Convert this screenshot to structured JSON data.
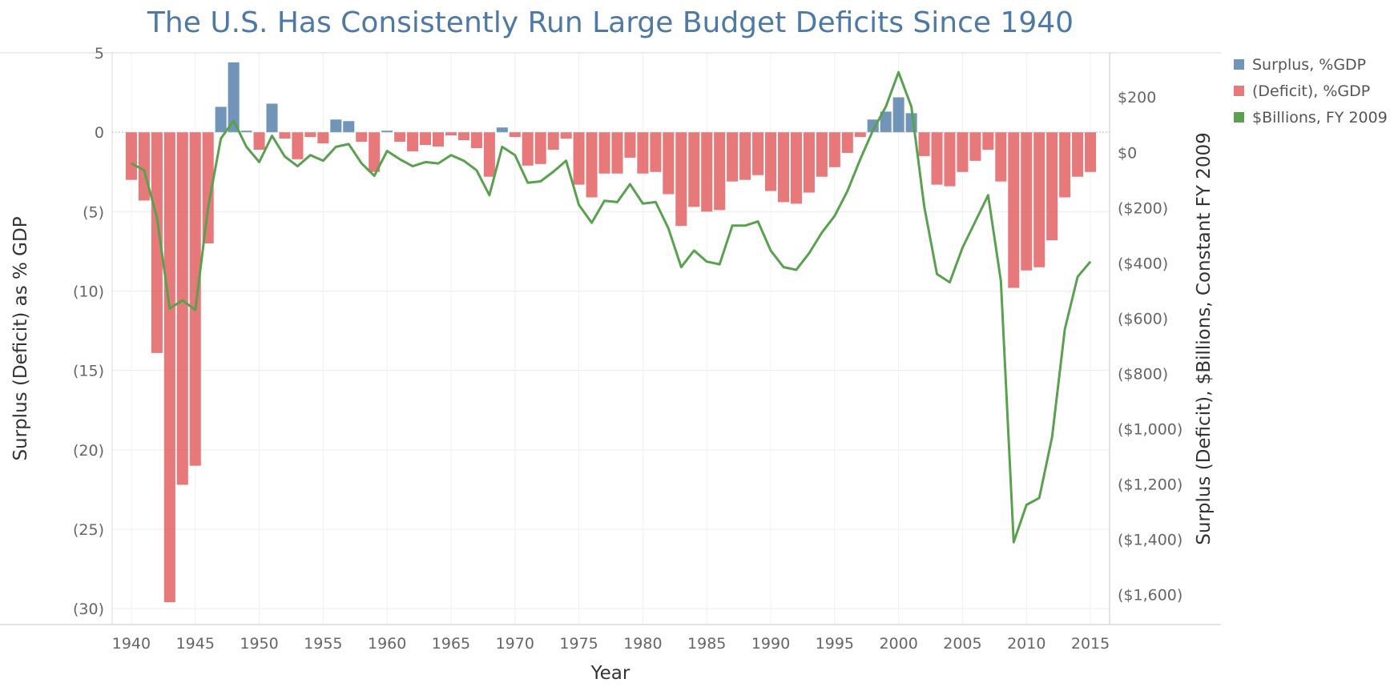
{
  "chart_data": {
    "type": "bar",
    "title": "The U.S. Has Consistently Run Large Budget Deficits Since 1940",
    "xlabel": "Year",
    "ylabel": "Surplus (Deficit) as % GDP",
    "y2label": "Surplus (Deficit), $Billions, Constant FY 2009",
    "xlim": [
      1938.5,
      2016.5
    ],
    "ylim": [
      -31,
      5
    ],
    "y2lim": [
      -1708,
      360
    ],
    "xticks": [
      "1940",
      "1945",
      "1950",
      "1955",
      "1960",
      "1965",
      "1970",
      "1975",
      "1980",
      "1985",
      "1990",
      "1995",
      "2000",
      "2005",
      "2010",
      "2015"
    ],
    "yticks": [
      {
        "value": 5,
        "label": "5"
      },
      {
        "value": 0,
        "label": "0"
      },
      {
        "value": -5,
        "label": "(5)"
      },
      {
        "value": -10,
        "label": "(10)"
      },
      {
        "value": -15,
        "label": "(15)"
      },
      {
        "value": -20,
        "label": "(20)"
      },
      {
        "value": -25,
        "label": "(25)"
      },
      {
        "value": -30,
        "label": "(30)"
      }
    ],
    "y2ticks": [
      {
        "value": 200,
        "label": "$200"
      },
      {
        "value": 0,
        "label": "$0"
      },
      {
        "value": -200,
        "label": "($200)"
      },
      {
        "value": -400,
        "label": "($400)"
      },
      {
        "value": -600,
        "label": "($600)"
      },
      {
        "value": -800,
        "label": "($800)"
      },
      {
        "value": -1000,
        "label": "($1,000)"
      },
      {
        "value": -1200,
        "label": "($1,200)"
      },
      {
        "value": -1400,
        "label": "($1,400)"
      },
      {
        "value": -1600,
        "label": "($1,600)"
      }
    ],
    "grid": true,
    "legend_position": "right",
    "colors": {
      "surplus": "#4e79a7",
      "deficit": "#e15759",
      "line": "#59a14f"
    },
    "series": [
      {
        "name": "Surplus, %GDP",
        "axis": "left",
        "type": "bar",
        "x": [
          1947,
          1948,
          1949,
          1951,
          1956,
          1957,
          1960,
          1969,
          1998,
          1999,
          2000,
          2001
        ],
        "values": [
          1.6,
          4.4,
          0.1,
          1.8,
          0.8,
          0.7,
          0.1,
          0.3,
          0.8,
          1.3,
          2.2,
          1.2
        ]
      },
      {
        "name": "(Deficit), %GDP",
        "axis": "left",
        "type": "bar",
        "x": [
          1940,
          1941,
          1942,
          1943,
          1944,
          1945,
          1946,
          1950,
          1952,
          1953,
          1954,
          1955,
          1958,
          1959,
          1961,
          1962,
          1963,
          1964,
          1965,
          1966,
          1967,
          1968,
          1970,
          1971,
          1972,
          1973,
          1974,
          1975,
          1976,
          1977,
          1978,
          1979,
          1980,
          1981,
          1982,
          1983,
          1984,
          1985,
          1986,
          1987,
          1988,
          1989,
          1990,
          1991,
          1992,
          1993,
          1994,
          1995,
          1996,
          1997,
          2002,
          2003,
          2004,
          2005,
          2006,
          2007,
          2008,
          2009,
          2010,
          2011,
          2012,
          2013,
          2014,
          2015
        ],
        "values": [
          -3.0,
          -4.3,
          -13.9,
          -29.6,
          -22.2,
          -21.0,
          -7.0,
          -1.1,
          -0.4,
          -1.7,
          -0.3,
          -0.7,
          -0.6,
          -2.5,
          -0.6,
          -1.2,
          -0.8,
          -0.9,
          -0.2,
          -0.5,
          -1.0,
          -2.8,
          -0.3,
          -2.1,
          -2.0,
          -1.1,
          -0.4,
          -3.3,
          -4.1,
          -2.6,
          -2.6,
          -1.6,
          -2.6,
          -2.5,
          -3.9,
          -5.9,
          -4.7,
          -5.0,
          -4.9,
          -3.1,
          -3.0,
          -2.7,
          -3.7,
          -4.4,
          -4.5,
          -3.8,
          -2.8,
          -2.2,
          -1.3,
          -0.3,
          -1.5,
          -3.3,
          -3.4,
          -2.5,
          -1.8,
          -1.1,
          -3.1,
          -9.8,
          -8.7,
          -8.5,
          -6.8,
          -4.1,
          -2.8,
          -2.5
        ]
      },
      {
        "name": "$Billions, FY 2009",
        "axis": "right",
        "type": "line",
        "x": [
          1940,
          1941,
          1942,
          1943,
          1944,
          1945,
          1946,
          1947,
          1948,
          1949,
          1950,
          1951,
          1952,
          1953,
          1954,
          1955,
          1956,
          1957,
          1958,
          1959,
          1960,
          1961,
          1962,
          1963,
          1964,
          1965,
          1966,
          1967,
          1968,
          1969,
          1970,
          1971,
          1972,
          1973,
          1974,
          1975,
          1976,
          1977,
          1978,
          1979,
          1980,
          1981,
          1982,
          1983,
          1984,
          1985,
          1986,
          1987,
          1988,
          1989,
          1990,
          1991,
          1992,
          1993,
          1994,
          1995,
          1996,
          1997,
          1998,
          1999,
          2000,
          2001,
          2002,
          2003,
          2004,
          2005,
          2006,
          2007,
          2008,
          2009,
          2010,
          2011,
          2012,
          2013,
          2014,
          2015
        ],
        "values": [
          -40,
          -65,
          -235,
          -565,
          -535,
          -570,
          -200,
          50,
          115,
          20,
          -35,
          60,
          -15,
          -50,
          -10,
          -30,
          20,
          30,
          -40,
          -85,
          5,
          -25,
          -50,
          -35,
          -40,
          -10,
          -30,
          -65,
          -155,
          20,
          -10,
          -110,
          -105,
          -70,
          -30,
          -190,
          -255,
          -175,
          -180,
          -115,
          -185,
          -180,
          -275,
          -415,
          -355,
          -395,
          -405,
          -265,
          -265,
          -250,
          -355,
          -415,
          -425,
          -365,
          -290,
          -230,
          -140,
          -25,
          80,
          165,
          290,
          165,
          -195,
          -440,
          -470,
          -345,
          -250,
          -155,
          -465,
          -1410,
          -1275,
          -1250,
          -1030,
          -640,
          -450,
          -395
        ]
      }
    ]
  }
}
